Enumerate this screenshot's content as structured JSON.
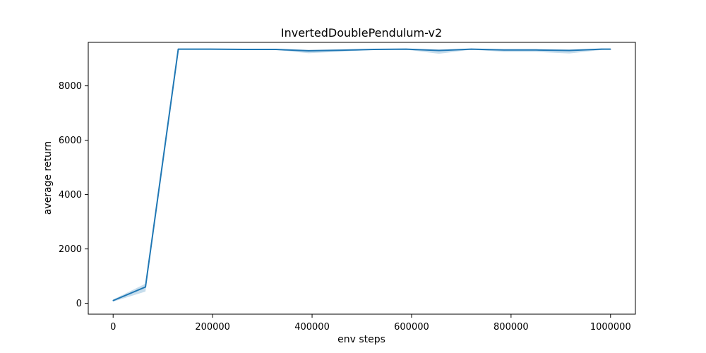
{
  "chart_data": {
    "type": "line",
    "title": "InvertedDoublePendulum-v2",
    "xlabel": "env steps",
    "ylabel": "average return",
    "xlim": [
      -50000,
      1050000
    ],
    "ylim": [
      -400,
      9600
    ],
    "grid": false,
    "legend": "none",
    "x_ticks": [
      0,
      200000,
      400000,
      600000,
      800000,
      1000000
    ],
    "y_ticks": [
      0,
      2000,
      4000,
      6000,
      8000
    ],
    "series": [
      {
        "color": "#1f77b4",
        "band_color": "#1f77b4",
        "x": [
          0,
          65000,
          131000,
          196000,
          262000,
          327000,
          393000,
          458000,
          524000,
          589000,
          655000,
          720000,
          786000,
          851000,
          917000,
          982000,
          1000000
        ],
        "y": [
          100,
          600,
          9350,
          9350,
          9340,
          9340,
          9290,
          9310,
          9340,
          9350,
          9300,
          9350,
          9320,
          9320,
          9300,
          9350,
          9350
        ],
        "y_low": [
          60,
          430,
          9340,
          9340,
          9330,
          9320,
          9200,
          9260,
          9320,
          9330,
          9180,
          9330,
          9250,
          9250,
          9190,
          9320,
          9340
        ],
        "y_high": [
          140,
          720,
          9360,
          9360,
          9350,
          9355,
          9330,
          9340,
          9355,
          9360,
          9340,
          9360,
          9350,
          9350,
          9340,
          9360,
          9360
        ]
      }
    ]
  }
}
